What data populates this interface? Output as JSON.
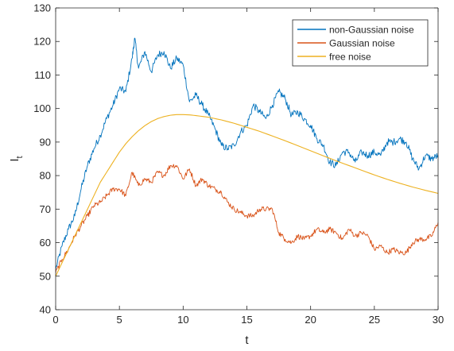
{
  "chart_data": {
    "type": "line",
    "xlabel": "t",
    "ylabel_main": "I",
    "ylabel_sub": "t",
    "xlim": [
      0,
      30
    ],
    "ylim": [
      40,
      130
    ],
    "x_ticks": [
      0,
      5,
      10,
      15,
      20,
      25,
      30
    ],
    "y_ticks": [
      40,
      50,
      60,
      70,
      80,
      90,
      100,
      110,
      120,
      130
    ],
    "grid": false,
    "legend_position": "top-right",
    "series": [
      {
        "name": "non-Gaussian noise",
        "color": "#0072BD",
        "x": [
          0,
          0.5,
          1,
          1.5,
          2,
          2.5,
          3,
          3.5,
          4,
          4.5,
          5,
          5.5,
          6,
          6.2,
          6.5,
          7,
          7.5,
          8,
          8.5,
          9,
          9.5,
          10,
          10.5,
          11,
          11.5,
          12,
          12.5,
          13,
          13.5,
          14,
          14.5,
          15,
          15.5,
          16,
          16.5,
          17,
          17.5,
          18,
          18.5,
          19,
          19.5,
          20,
          20.5,
          21,
          21.5,
          22,
          22.5,
          23,
          23.5,
          24,
          24.5,
          25,
          25.5,
          26,
          26.5,
          27,
          27.5,
          28,
          28.5,
          29,
          29.5,
          30
        ],
        "values": [
          52,
          59,
          64,
          68,
          76,
          83,
          88,
          92,
          97,
          101,
          106,
          105,
          115,
          121,
          112,
          117,
          111,
          116,
          117,
          112,
          115,
          113,
          102,
          104,
          101,
          98,
          94,
          89,
          88,
          89,
          93,
          95,
          101,
          99,
          97,
          101,
          105,
          103,
          98,
          99,
          97,
          95,
          91,
          89,
          84,
          83,
          87,
          87,
          84,
          87,
          86,
          87,
          86,
          90,
          90,
          91,
          90,
          85,
          82,
          86,
          85,
          86
        ]
      },
      {
        "name": "Gaussian noise",
        "color": "#D95319",
        "x": [
          0,
          0.5,
          1,
          1.5,
          2,
          2.5,
          3,
          3.5,
          4,
          4.5,
          5,
          5.5,
          6,
          6.5,
          7,
          7.5,
          8,
          8.5,
          9,
          9.5,
          10,
          10.5,
          11,
          11.5,
          12,
          12.5,
          13,
          13.5,
          14,
          14.5,
          15,
          15.5,
          16,
          16.5,
          17,
          17.5,
          18,
          18.5,
          19,
          19.5,
          20,
          20.5,
          21,
          21.5,
          22,
          22.5,
          23,
          23.5,
          24,
          24.5,
          25,
          25.5,
          26,
          26.5,
          27,
          27.5,
          28,
          28.5,
          29,
          29.5,
          30
        ],
        "values": [
          51,
          55,
          58,
          62,
          65,
          68,
          71,
          72,
          74,
          76,
          76,
          74,
          81,
          77,
          79,
          78,
          81,
          80,
          83,
          83,
          79,
          82,
          77,
          79,
          77,
          76,
          75,
          72,
          70,
          69,
          68,
          68,
          70,
          70,
          70,
          63,
          61,
          60,
          62,
          61,
          62,
          64,
          63,
          64,
          63,
          61,
          64,
          62,
          63,
          62,
          58,
          59,
          57,
          58,
          57,
          57,
          60,
          61,
          61,
          62,
          66
        ]
      },
      {
        "name": "free noise",
        "color": "#EDB120",
        "x": [
          0,
          0.5,
          1,
          1.5,
          2,
          2.5,
          3,
          3.5,
          4,
          4.5,
          5,
          5.5,
          6,
          6.5,
          7,
          7.5,
          8,
          8.5,
          9,
          9.5,
          10,
          10.5,
          11,
          12,
          13,
          14,
          15,
          16,
          17,
          18,
          19,
          20,
          21,
          22,
          23,
          24,
          25,
          26,
          27,
          28,
          29,
          30
        ],
        "values": [
          50,
          54,
          58,
          62,
          66,
          70,
          74,
          78,
          81,
          84,
          87,
          89.5,
          91.6,
          93.4,
          94.9,
          96.1,
          97,
          97.6,
          98,
          98.2,
          98.2,
          98.1,
          97.9,
          97.4,
          96.6,
          95.6,
          94.4,
          93.2,
          91.8,
          90.4,
          88.9,
          87.4,
          85.9,
          84.4,
          83,
          81.6,
          80.2,
          78.9,
          77.7,
          76.6,
          75.6,
          74.7
        ]
      }
    ]
  }
}
